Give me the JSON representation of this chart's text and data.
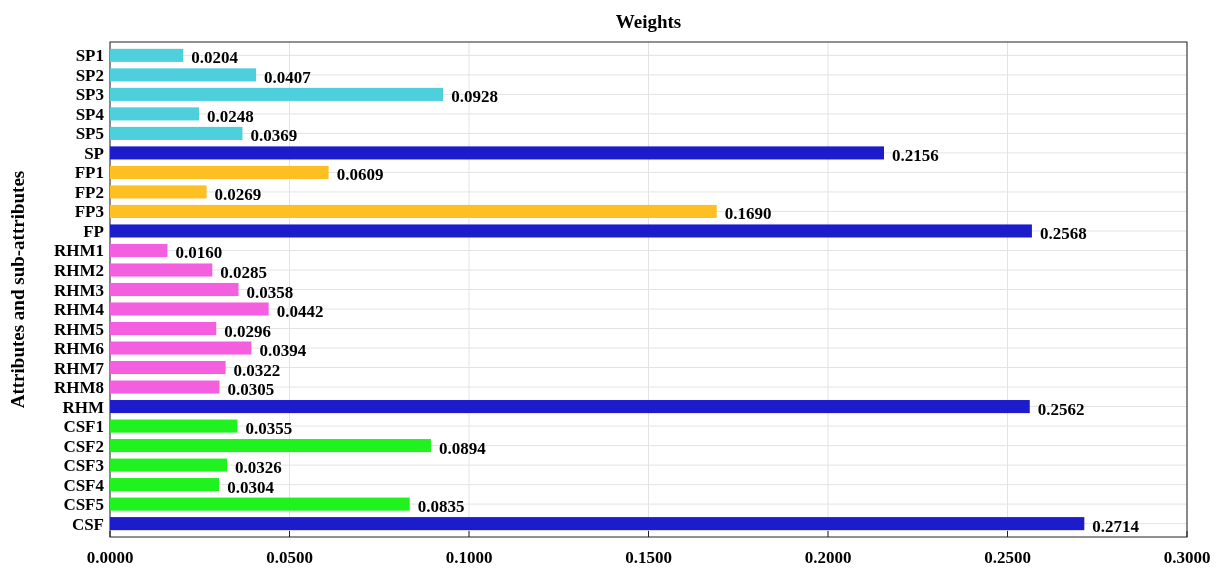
{
  "chart_data": {
    "type": "bar",
    "orientation": "horizontal",
    "title": "Weights",
    "ylabel": "Attributes and sub-attributes",
    "categories": [
      "SP1",
      "SP2",
      "SP3",
      "SP4",
      "SP5",
      "SP",
      "FP1",
      "FP2",
      "FP3",
      "FP",
      "RHM1",
      "RHM2",
      "RHM3",
      "RHM4",
      "RHM5",
      "RHM6",
      "RHM7",
      "RHM8",
      "RHM",
      "CSF1",
      "CSF2",
      "CSF3",
      "CSF4",
      "CSF5",
      "CSF"
    ],
    "values": [
      0.0204,
      0.0407,
      0.0928,
      0.0248,
      0.0369,
      0.2156,
      0.0609,
      0.0269,
      0.169,
      0.2568,
      0.016,
      0.0285,
      0.0358,
      0.0442,
      0.0296,
      0.0394,
      0.0322,
      0.0305,
      0.2562,
      0.0355,
      0.0894,
      0.0326,
      0.0304,
      0.0835,
      0.2714
    ],
    "value_labels": [
      "0.0204",
      "0.0407",
      "0.0928",
      "0.0248",
      "0.0369",
      "0.2156",
      "0.0609",
      "0.0269",
      "0.1690",
      "0.2568",
      "0.0160",
      "0.0285",
      "0.0358",
      "0.0442",
      "0.0296",
      "0.0394",
      "0.0322",
      "0.0305",
      "0.2562",
      "0.0355",
      "0.0894",
      "0.0326",
      "0.0304",
      "0.0835",
      "0.2714"
    ],
    "colors": [
      "#4ecfdc",
      "#4ecfdc",
      "#4ecfdc",
      "#4ecfdc",
      "#4ecfdc",
      "#1c1ccc",
      "#fdbf22",
      "#fdbf22",
      "#fdbf22",
      "#1c1ccc",
      "#f45fe0",
      "#f45fe0",
      "#f45fe0",
      "#f45fe0",
      "#f45fe0",
      "#f45fe0",
      "#f45fe0",
      "#f45fe0",
      "#1c1ccc",
      "#1ff21f",
      "#1ff21f",
      "#1ff21f",
      "#1ff21f",
      "#1ff21f",
      "#1c1ccc"
    ],
    "xlim": [
      0,
      0.3
    ],
    "xticks": [
      {
        "value": 0,
        "label": "0.0000"
      },
      {
        "value": 0.05,
        "label": "0.0500"
      },
      {
        "value": 0.1,
        "label": "0.1000"
      },
      {
        "value": 0.15,
        "label": "0.1500"
      },
      {
        "value": 0.2,
        "label": "0.2000"
      },
      {
        "value": 0.25,
        "label": "0.2500"
      },
      {
        "value": 0.3,
        "label": "0.3000"
      }
    ],
    "grid": true
  }
}
